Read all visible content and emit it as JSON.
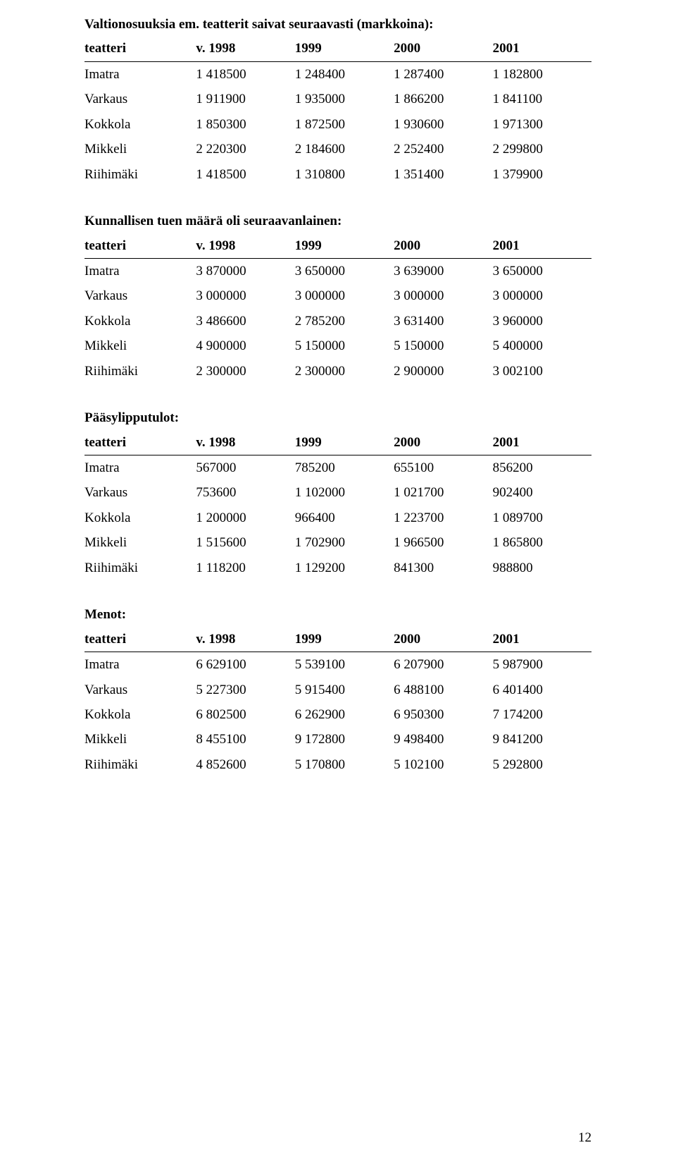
{
  "page": {
    "number": "12"
  },
  "sections": [
    {
      "title": "Valtionosuuksia em. teatterit saivat seuraavasti (markkoina):",
      "is_bold_title": true,
      "table": {
        "headers": [
          "teatteri",
          "v. 1998",
          "1999",
          "2000",
          "2001"
        ],
        "rows": [
          [
            "Imatra",
            "1 418500",
            "1 248400",
            "1 287400",
            "1 182800"
          ],
          [
            "Varkaus",
            "1 911900",
            "1 935000",
            "1 866200",
            "1 841100"
          ],
          [
            "Kokkola",
            "1 850300",
            "1 872500",
            "1 930600",
            "1 971300"
          ],
          [
            "Mikkeli",
            "2 220300",
            "2 184600",
            "2 252400",
            "2 299800"
          ],
          [
            "Riihimäki",
            "1 418500",
            "1 310800",
            "1 351400",
            "1 379900"
          ]
        ]
      }
    },
    {
      "title": "Kunnallisen tuen määrä oli seuraavanlainen:",
      "is_bold_title": true,
      "table": {
        "headers": [
          "teatteri",
          "v. 1998",
          "1999",
          "2000",
          "2001"
        ],
        "rows": [
          [
            "Imatra",
            "3 870000",
            "3 650000",
            "3 639000",
            "3 650000"
          ],
          [
            "Varkaus",
            "3 000000",
            "3 000000",
            "3 000000",
            "3 000000"
          ],
          [
            "Kokkola",
            "3 486600",
            "2 785200",
            "3 631400",
            "3 960000"
          ],
          [
            "Mikkeli",
            "4 900000",
            "5 150000",
            "5 150000",
            "5 400000"
          ],
          [
            "Riihimäki",
            "2 300000",
            "2 300000",
            "2 900000",
            "3 002100"
          ]
        ]
      }
    },
    {
      "title": "Pääsylipputulot:",
      "is_bold_title": true,
      "table": {
        "headers": [
          "teatteri",
          "v. 1998",
          "1999",
          "2000",
          "2001"
        ],
        "rows": [
          [
            "Imatra",
            "567000",
            "785200",
            "655100",
            "856200"
          ],
          [
            "Varkaus",
            "753600",
            "1 102000",
            "1 021700",
            "902400"
          ],
          [
            "Kokkola",
            "1 200000",
            "966400",
            "1 223700",
            "1 089700"
          ],
          [
            "Mikkeli",
            "1 515600",
            "1 702900",
            "1 966500",
            "1 865800"
          ],
          [
            "Riihimäki",
            "1 118200",
            "1 129200",
            "841300",
            "988800"
          ]
        ]
      }
    },
    {
      "title": "Menot:",
      "is_bold_title": true,
      "table": {
        "headers": [
          "teatteri",
          "v. 1998",
          "1999",
          "2000",
          "2001"
        ],
        "rows": [
          [
            "Imatra",
            "6 629100",
            "5 539100",
            "6 207900",
            "5 987900"
          ],
          [
            "Varkaus",
            "5 227300",
            "5 915400",
            "6 488100",
            "6 401400"
          ],
          [
            "Kokkola",
            "6 802500",
            "6 262900",
            "6 950300",
            "7 174200"
          ],
          [
            "Mikkeli",
            "8 455100",
            "9 172800",
            "9 498400",
            "9 841200"
          ],
          [
            "Riihimäki",
            "4 852600",
            "5 170800",
            "5 102100",
            "5 292800"
          ]
        ]
      }
    }
  ],
  "colors": {
    "text": "#000000",
    "background": "#ffffff",
    "rule": "#000000"
  }
}
